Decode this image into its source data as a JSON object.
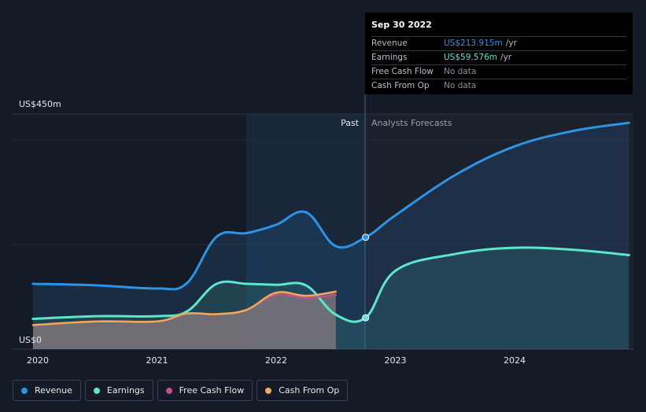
{
  "chart_data": {
    "type": "line",
    "y_axis": {
      "max_label": "US$450m",
      "min_label": "US$0",
      "ylim": [
        0,
        450
      ]
    },
    "x_axis": {
      "ticks": [
        "2020",
        "2021",
        "2022",
        "2023",
        "2024"
      ]
    },
    "divider_labels": {
      "past": "Past",
      "forecast": "Analysts Forecasts"
    },
    "series": [
      {
        "name": "Revenue",
        "color": "#2e93e6",
        "points": [
          [
            2019.96,
            125
          ],
          [
            2020.5,
            122
          ],
          [
            2021.0,
            116
          ],
          [
            2021.25,
            126
          ],
          [
            2021.5,
            215
          ],
          [
            2021.75,
            222
          ],
          [
            2022.0,
            238
          ],
          [
            2022.25,
            262
          ],
          [
            2022.5,
            197
          ],
          [
            2022.75,
            214
          ],
          [
            2023.0,
            256
          ],
          [
            2023.5,
            333
          ],
          [
            2024.0,
            388
          ],
          [
            2024.5,
            418
          ],
          [
            2024.96,
            433
          ]
        ]
      },
      {
        "name": "Earnings",
        "color": "#5ee6cc",
        "points": [
          [
            2019.96,
            58
          ],
          [
            2020.5,
            63
          ],
          [
            2021.0,
            63
          ],
          [
            2021.25,
            72
          ],
          [
            2021.5,
            125
          ],
          [
            2021.75,
            125
          ],
          [
            2022.0,
            123
          ],
          [
            2022.25,
            122
          ],
          [
            2022.5,
            66
          ],
          [
            2022.75,
            60
          ],
          [
            2023.0,
            150
          ],
          [
            2023.5,
            182
          ],
          [
            2024.0,
            194
          ],
          [
            2024.5,
            190
          ],
          [
            2024.96,
            180
          ]
        ]
      },
      {
        "name": "Free Cash Flow",
        "color": "#c44f8e",
        "points": [
          [
            2019.96,
            46
          ],
          [
            2020.5,
            53
          ],
          [
            2021.0,
            53
          ],
          [
            2021.25,
            68
          ],
          [
            2021.5,
            67
          ],
          [
            2021.75,
            75
          ],
          [
            2022.0,
            104
          ],
          [
            2022.25,
            98
          ],
          [
            2022.5,
            104
          ]
        ]
      },
      {
        "name": "Cash From Op",
        "color": "#f0a95a",
        "points": [
          [
            2019.96,
            46
          ],
          [
            2020.5,
            53
          ],
          [
            2021.0,
            53
          ],
          [
            2021.25,
            68
          ],
          [
            2021.5,
            67
          ],
          [
            2021.75,
            75
          ],
          [
            2022.0,
            108
          ],
          [
            2022.25,
            102
          ],
          [
            2022.5,
            110
          ]
        ]
      }
    ]
  },
  "tooltip": {
    "date": "Sep 30 2022",
    "rows": [
      {
        "label": "Revenue",
        "value": "US$213.915m",
        "unit": "/yr",
        "color": "#2e93e6"
      },
      {
        "label": "Earnings",
        "value": "US$59.576m",
        "unit": "/yr",
        "color": "#5ee6cc"
      },
      {
        "label": "Free Cash Flow",
        "value": "No data",
        "unit": "",
        "color": "#8a909a"
      },
      {
        "label": "Cash From Op",
        "value": "No data",
        "unit": "",
        "color": "#8a909a"
      }
    ]
  },
  "legend": [
    {
      "label": "Revenue",
      "color": "#2e93e6"
    },
    {
      "label": "Earnings",
      "color": "#5ee6cc"
    },
    {
      "label": "Free Cash Flow",
      "color": "#c44f8e"
    },
    {
      "label": "Cash From Op",
      "color": "#f0a95a"
    }
  ]
}
